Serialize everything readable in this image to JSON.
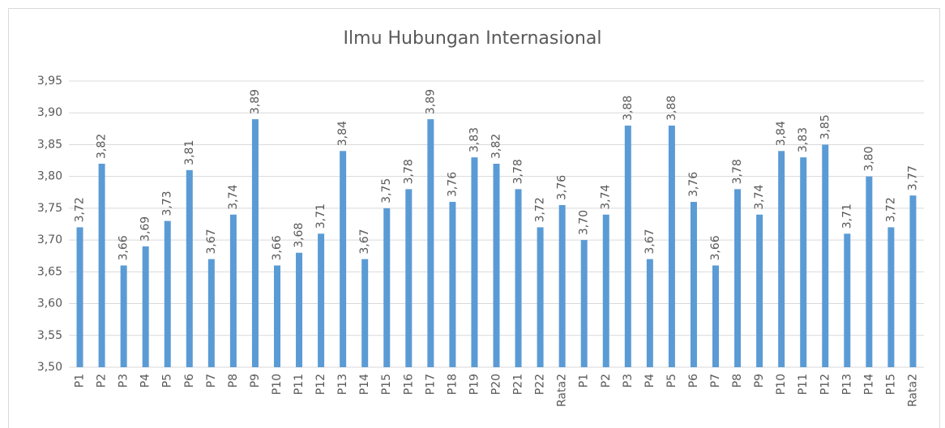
{
  "chart_data": {
    "type": "bar",
    "title": "Ilmu Hubungan Internasional",
    "categories": [
      "P1",
      "P2",
      "P3",
      "P4",
      "P5",
      "P6",
      "P7",
      "P8",
      "P9",
      "P10",
      "P11",
      "P12",
      "P13",
      "P14",
      "P15",
      "P16",
      "P17",
      "P18",
      "P19",
      "P20",
      "P21",
      "P22",
      "Rata2",
      "P1",
      "P2",
      "P3",
      "P4",
      "P5",
      "P6",
      "P7",
      "P8",
      "P9",
      "P10",
      "P11",
      "P12",
      "P13",
      "P14",
      "P15",
      "Rata2"
    ],
    "values": [
      3.72,
      3.82,
      3.66,
      3.69,
      3.73,
      3.81,
      3.67,
      3.74,
      3.89,
      3.66,
      3.68,
      3.71,
      3.84,
      3.67,
      3.75,
      3.78,
      3.89,
      3.76,
      3.83,
      3.82,
      3.78,
      3.72,
      3.755,
      3.7,
      3.74,
      3.88,
      3.67,
      3.88,
      3.76,
      3.66,
      3.78,
      3.74,
      3.84,
      3.83,
      3.85,
      3.71,
      3.8,
      3.72,
      3.77
    ],
    "value_labels": [
      "3,72",
      "3,82",
      "3,66",
      "3,69",
      "3,73",
      "3,81",
      "3,67",
      "3,74",
      "3,89",
      "3,66",
      "3,68",
      "3,71",
      "3,84",
      "3,67",
      "3,75",
      "3,78",
      "3,89",
      "3,76",
      "3,83",
      "3,82",
      "3,78",
      "3,72",
      "3,76",
      "3,70",
      "3,74",
      "3,88",
      "3,67",
      "3,88",
      "3,76",
      "3,66",
      "3,78",
      "3,74",
      "3,84",
      "3,83",
      "3,85",
      "3,71",
      "3,80",
      "3,72",
      "3,77"
    ],
    "color": "#5b9bd5",
    "ylim": [
      3.5,
      3.95
    ],
    "yticks": [
      {
        "value": 3.5,
        "label": "3,50"
      },
      {
        "value": 3.55,
        "label": "3,55"
      },
      {
        "value": 3.6,
        "label": "3,60"
      },
      {
        "value": 3.65,
        "label": "3,65"
      },
      {
        "value": 3.7,
        "label": "3,70"
      },
      {
        "value": 3.75,
        "label": "3,75"
      },
      {
        "value": 3.8,
        "label": "3,80"
      },
      {
        "value": 3.85,
        "label": "3,85"
      },
      {
        "value": 3.9,
        "label": "3,90"
      },
      {
        "value": 3.95,
        "label": "3,95"
      }
    ],
    "grid": true
  }
}
